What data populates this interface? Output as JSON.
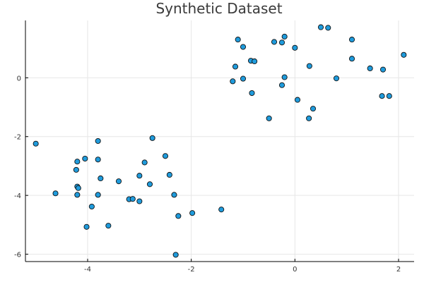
{
  "chart_data": {
    "type": "scatter",
    "title": "Synthetic Dataset",
    "xlabel": "",
    "ylabel": "",
    "xlim": [
      -5.2,
      2.3
    ],
    "ylim": [
      -6.25,
      1.95
    ],
    "x_ticks": [
      -4,
      -2,
      0,
      2
    ],
    "x_tick_labels": [
      "-4",
      "-2",
      "0",
      "2"
    ],
    "y_ticks": [
      -6,
      -4,
      -2,
      0
    ],
    "y_tick_labels": [
      "-6",
      "-4",
      "-2",
      "0"
    ],
    "grid": true,
    "legend": "none",
    "marker_color": "#1f9bdc",
    "marker_edge_color": "#111111",
    "series": [
      {
        "points": [
          [
            0.5,
            1.72
          ],
          [
            0.64,
            1.7
          ],
          [
            -1.1,
            1.3
          ],
          [
            -0.2,
            1.4
          ],
          [
            -0.4,
            1.22
          ],
          [
            -0.25,
            1.2
          ],
          [
            1.1,
            1.3
          ],
          [
            -1.0,
            1.05
          ],
          [
            0.0,
            1.02
          ],
          [
            2.1,
            0.78
          ],
          [
            1.1,
            0.65
          ],
          [
            -0.85,
            0.58
          ],
          [
            -0.78,
            0.56
          ],
          [
            -1.15,
            0.38
          ],
          [
            0.28,
            0.4
          ],
          [
            1.45,
            0.32
          ],
          [
            1.7,
            0.28
          ],
          [
            -0.2,
            0.02
          ],
          [
            -1.0,
            -0.03
          ],
          [
            0.8,
            -0.02
          ],
          [
            -1.2,
            -0.12
          ],
          [
            -0.25,
            -0.25
          ],
          [
            -0.83,
            -0.52
          ],
          [
            1.68,
            -0.62
          ],
          [
            1.82,
            -0.62
          ],
          [
            0.05,
            -0.75
          ],
          [
            0.35,
            -1.05
          ],
          [
            -0.5,
            -1.38
          ],
          [
            0.27,
            -1.38
          ],
          [
            -5.0,
            -2.24
          ],
          [
            -3.8,
            -2.15
          ],
          [
            -2.75,
            -2.05
          ],
          [
            -4.2,
            -2.85
          ],
          [
            -4.05,
            -2.75
          ],
          [
            -3.8,
            -2.78
          ],
          [
            -2.9,
            -2.88
          ],
          [
            -2.5,
            -2.66
          ],
          [
            -4.22,
            -3.13
          ],
          [
            -3.75,
            -3.42
          ],
          [
            -3.4,
            -3.52
          ],
          [
            -3.0,
            -3.33
          ],
          [
            -2.42,
            -3.3
          ],
          [
            -2.8,
            -3.62
          ],
          [
            -4.2,
            -3.7
          ],
          [
            -4.18,
            -3.75
          ],
          [
            -4.62,
            -3.93
          ],
          [
            -4.2,
            -3.98
          ],
          [
            -3.8,
            -3.98
          ],
          [
            -3.2,
            -4.13
          ],
          [
            -3.13,
            -4.12
          ],
          [
            -3.0,
            -4.2
          ],
          [
            -2.33,
            -3.98
          ],
          [
            -3.92,
            -4.38
          ],
          [
            -2.25,
            -4.7
          ],
          [
            -1.98,
            -4.6
          ],
          [
            -1.42,
            -4.48
          ],
          [
            -4.02,
            -5.07
          ],
          [
            -3.6,
            -5.03
          ],
          [
            -2.3,
            -6.02
          ]
        ]
      }
    ]
  }
}
